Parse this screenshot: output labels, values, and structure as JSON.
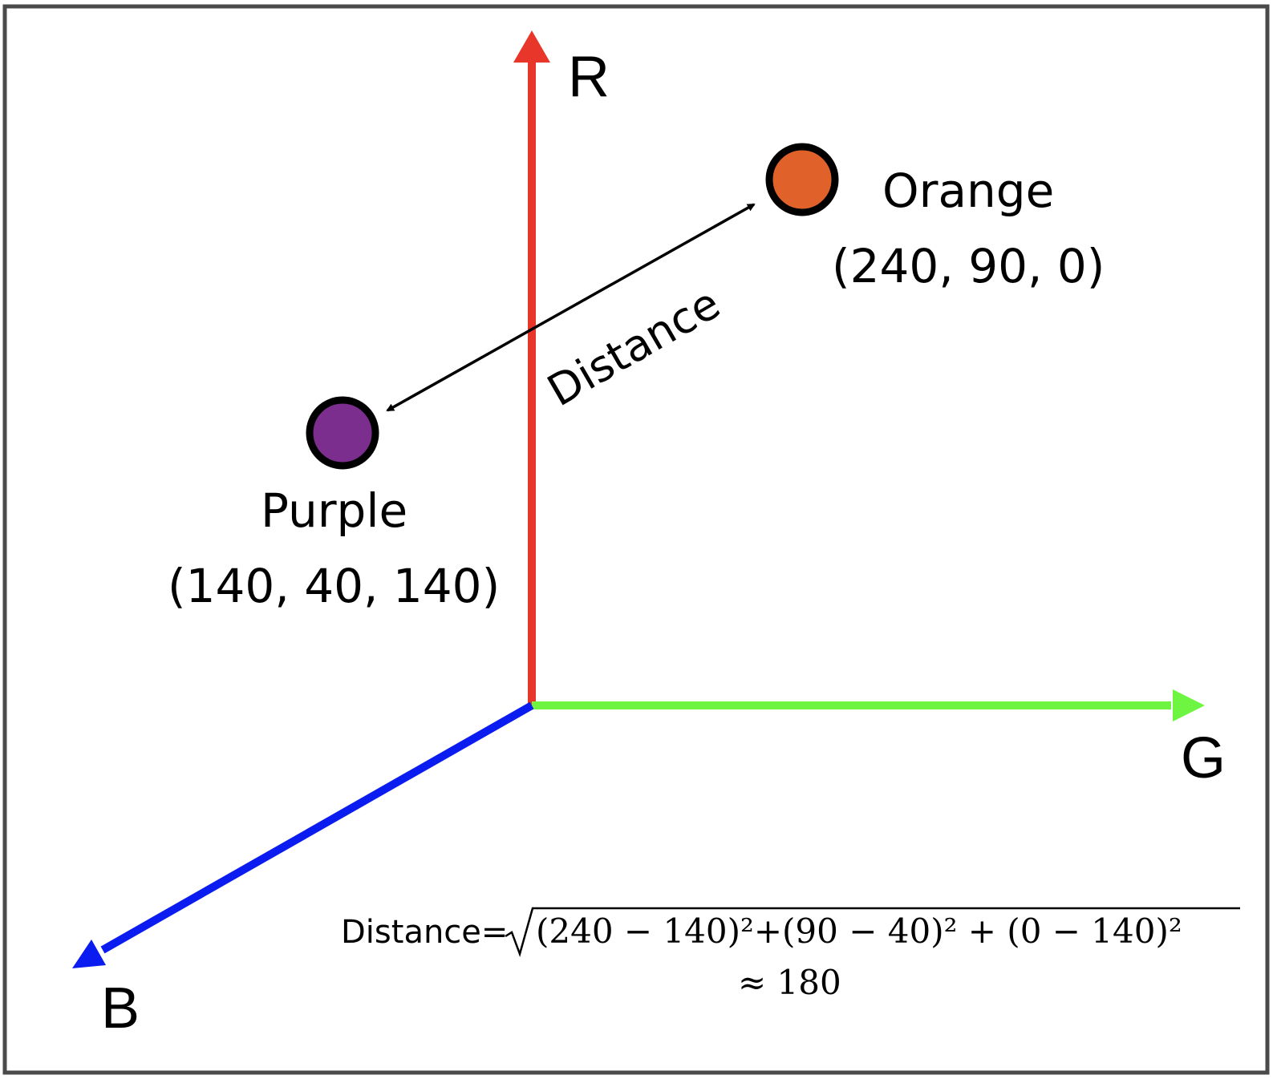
{
  "axes": {
    "r": {
      "label": "R",
      "color": "#e8372a"
    },
    "g": {
      "label": "G",
      "color": "#6ef542"
    },
    "b": {
      "label": "B",
      "color": "#0a1cf0"
    }
  },
  "points": {
    "orange": {
      "name": "Orange",
      "coords": "(240, 90, 0)",
      "color": "#e0622a"
    },
    "purple": {
      "name": "Purple",
      "coords": "(140, 40, 140)",
      "color": "#7b2e8e"
    }
  },
  "distance": {
    "label": "Distance",
    "formula_prefix": "Distance=",
    "formula_expr": "(240 − 140)²+(90 − 40)² + (0 − 140)²",
    "result": "≈ 180"
  }
}
